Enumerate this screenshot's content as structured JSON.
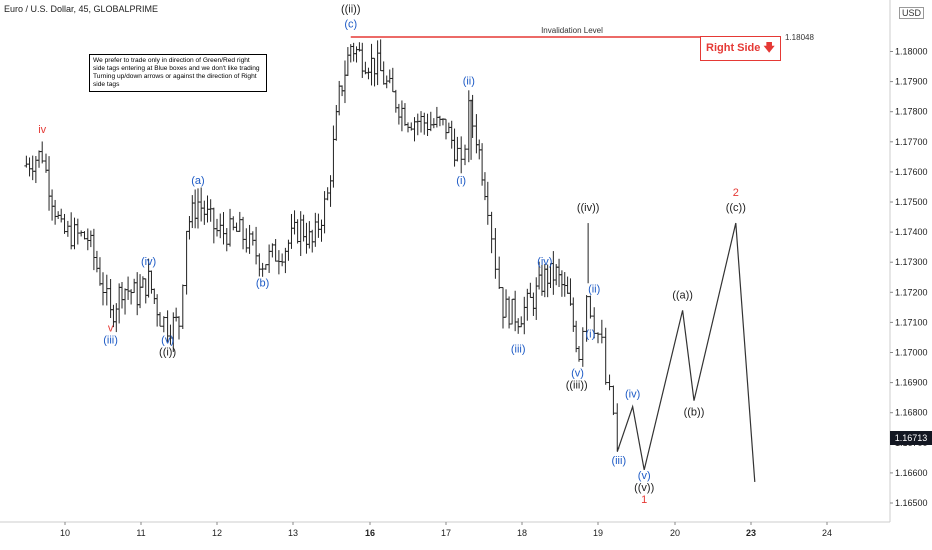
{
  "header": {
    "title": "Euro / U.S. Dollar, 45, GLOBALPRIME",
    "currency": "USD"
  },
  "note": {
    "text": "We prefer to trade only in direction of Green/Red right side tags entering at Blue boxes and we don't like trading Turning up/down arrows or against the direction of Right side tags"
  },
  "right_side_tag": {
    "text": "Right Side",
    "color": "#e53935"
  },
  "current_price": "1.16713",
  "chart_data": {
    "type": "ohlc",
    "title": "Euro / U.S. Dollar, 45, GLOBALPRIME",
    "xlabel": "",
    "ylabel": "",
    "x_ticks": [
      "10",
      "11",
      "12",
      "13",
      "16",
      "17",
      "18",
      "19",
      "20",
      "23",
      "24"
    ],
    "y_ticks": [
      1.165,
      1.166,
      1.167,
      1.168,
      1.169,
      1.17,
      1.171,
      1.172,
      1.173,
      1.174,
      1.175,
      1.176,
      1.177,
      1.178,
      1.179,
      1.18
    ],
    "ylim": [
      1.1643,
      1.1812
    ],
    "grid": false,
    "invalidation_level": {
      "label": "Invalidation Level",
      "value": 1.18048,
      "value_label": "1.18048",
      "color": "#e53935"
    },
    "price_path": [
      [
        9.45,
        1.1762
      ],
      [
        9.7,
        1.1766
      ],
      [
        9.75,
        1.176
      ],
      [
        9.95,
        1.174
      ],
      [
        10.3,
        1.1738
      ],
      [
        10.5,
        1.1722
      ],
      [
        10.6,
        1.1712
      ],
      [
        10.75,
        1.1722
      ],
      [
        10.95,
        1.1719
      ],
      [
        11.1,
        1.1724
      ],
      [
        11.25,
        1.1712
      ],
      [
        11.35,
        1.1709
      ],
      [
        11.5,
        1.171
      ],
      [
        11.6,
        1.1742
      ],
      [
        11.75,
        1.175
      ],
      [
        12.0,
        1.174
      ],
      [
        12.3,
        1.174
      ],
      [
        12.6,
        1.173
      ],
      [
        12.9,
        1.1735
      ],
      [
        13.1,
        1.1742
      ],
      [
        13.25,
        1.1736
      ],
      [
        13.45,
        1.1752
      ],
      [
        13.6,
        1.1785
      ],
      [
        13.75,
        1.1802
      ],
      [
        13.9,
        1.1798
      ],
      [
        14.1,
        1.1795
      ],
      [
        14.3,
        1.1785
      ],
      [
        14.5,
        1.1778
      ],
      [
        14.8,
        1.1776
      ],
      [
        15.0,
        1.1775
      ],
      [
        15.15,
        1.1766
      ],
      [
        15.2,
        1.176
      ],
      [
        15.3,
        1.178
      ],
      [
        15.4,
        1.1772
      ],
      [
        15.55,
        1.175
      ],
      [
        15.65,
        1.173
      ],
      [
        15.75,
        1.1715
      ],
      [
        15.95,
        1.1712
      ],
      [
        16.15,
        1.1718
      ],
      [
        16.3,
        1.1725
      ],
      [
        16.45,
        1.1726
      ],
      [
        16.6,
        1.1718
      ],
      [
        16.75,
        1.17
      ],
      [
        16.85,
        1.172
      ],
      [
        16.95,
        1.171
      ],
      [
        17.05,
        1.1702
      ],
      [
        17.1,
        1.169
      ],
      [
        17.2,
        1.168
      ],
      [
        17.25,
        1.1667
      ]
    ],
    "candles": {
      "spikes": [
        [
          15.33,
          1.1784
        ],
        [
          16.87,
          1.1743
        ]
      ]
    },
    "projection": [
      [
        17.25,
        1.1667
      ],
      [
        17.45,
        1.1682
      ],
      [
        17.6,
        1.1661
      ],
      [
        18.1,
        1.1714
      ],
      [
        18.25,
        1.1684
      ],
      [
        18.8,
        1.1743
      ],
      [
        19.05,
        1.1657
      ]
    ],
    "annotations": [
      {
        "text": "iv",
        "x": 9.7,
        "y": 1.1773,
        "color": "#e53935"
      },
      {
        "text": "v",
        "x": 10.6,
        "y": 1.1707,
        "color": "#e53935"
      },
      {
        "text": "(iii)",
        "x": 10.6,
        "y": 1.1703,
        "color": "#1e5bc6"
      },
      {
        "text": "(iv)",
        "x": 11.1,
        "y": 1.1729,
        "color": "#1e5bc6"
      },
      {
        "text": "(v)",
        "x": 11.35,
        "y": 1.1703,
        "color": "#1e5bc6"
      },
      {
        "text": "((i))",
        "x": 11.35,
        "y": 1.1699,
        "color": "#222222"
      },
      {
        "text": "(a)",
        "x": 11.75,
        "y": 1.1756,
        "color": "#1e5bc6"
      },
      {
        "text": "(b)",
        "x": 12.6,
        "y": 1.1722,
        "color": "#1e5bc6"
      },
      {
        "text": "(c)",
        "x": 13.75,
        "y": 1.1808,
        "color": "#1e5bc6"
      },
      {
        "text": "((ii))",
        "x": 13.75,
        "y": 1.1813,
        "color": "#222222"
      },
      {
        "text": "(ii)",
        "x": 15.3,
        "y": 1.1789,
        "color": "#1e5bc6"
      },
      {
        "text": "(i)",
        "x": 15.2,
        "y": 1.1756,
        "color": "#1e5bc6"
      },
      {
        "text": "(iii)",
        "x": 15.95,
        "y": 1.17,
        "color": "#1e5bc6"
      },
      {
        "text": "(iv)",
        "x": 16.3,
        "y": 1.1729,
        "color": "#1e5bc6"
      },
      {
        "text": "((iv))",
        "x": 16.87,
        "y": 1.1747,
        "color": "#222222"
      },
      {
        "text": "(ii)",
        "x": 16.95,
        "y": 1.172,
        "color": "#1e5bc6"
      },
      {
        "text": "(i)",
        "x": 16.9,
        "y": 1.1705,
        "color": "#1e5bc6"
      },
      {
        "text": "(v)",
        "x": 16.73,
        "y": 1.1692,
        "color": "#1e5bc6"
      },
      {
        "text": "((iii))",
        "x": 16.72,
        "y": 1.1688,
        "color": "#222222"
      },
      {
        "text": "(iv)",
        "x": 17.45,
        "y": 1.1685,
        "color": "#1e5bc6"
      },
      {
        "text": "(iii)",
        "x": 17.27,
        "y": 1.1663,
        "color": "#1e5bc6"
      },
      {
        "text": "(v)",
        "x": 17.6,
        "y": 1.1658,
        "color": "#1e5bc6"
      },
      {
        "text": "((v))",
        "x": 17.6,
        "y": 1.1654,
        "color": "#222222"
      },
      {
        "text": "1",
        "x": 17.6,
        "y": 1.165,
        "color": "#e53935"
      },
      {
        "text": "((a))",
        "x": 18.1,
        "y": 1.1718,
        "color": "#222222"
      },
      {
        "text": "((b))",
        "x": 18.25,
        "y": 1.1679,
        "color": "#222222"
      },
      {
        "text": "((c))",
        "x": 18.8,
        "y": 1.1747,
        "color": "#222222"
      },
      {
        "text": "2",
        "x": 18.8,
        "y": 1.1752,
        "color": "#e53935"
      }
    ]
  }
}
